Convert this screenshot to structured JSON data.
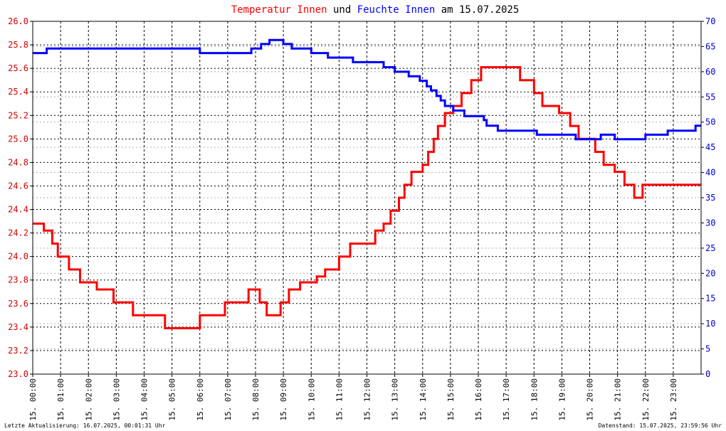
{
  "title": {
    "part1": "Temperatur Innen",
    "part2": " und ",
    "part3": "Feuchte Innen",
    "part4": " am 15.07.2025"
  },
  "footer": {
    "left": "Letzte Aktualisierung: 16.07.2025, 00:01:31 Uhr",
    "right": "Datenstand: 15.07.2025, 23:59:56 Uhr"
  },
  "colors": {
    "temperature": "#ff0000",
    "humidity": "#0000ff",
    "title_temp": "#ff0000",
    "title_hum": "#0000ff",
    "left_ticks": "#d00000",
    "right_ticks": "#0000d0",
    "grid": "#000000"
  },
  "chart_data": {
    "type": "line",
    "x_unit": "hour of day",
    "xlim": [
      0,
      24
    ],
    "x_ticks": [
      {
        "x": 0,
        "label": "15. 00:00"
      },
      {
        "x": 1,
        "label": "15. 01:00"
      },
      {
        "x": 2,
        "label": "15. 02:00"
      },
      {
        "x": 3,
        "label": "15. 03:00"
      },
      {
        "x": 4,
        "label": "15. 04:00"
      },
      {
        "x": 5,
        "label": "15. 05:00"
      },
      {
        "x": 6,
        "label": "15. 06:00"
      },
      {
        "x": 7,
        "label": "15. 07:00"
      },
      {
        "x": 8,
        "label": "15. 08:00"
      },
      {
        "x": 9,
        "label": "15. 09:00"
      },
      {
        "x": 10,
        "label": "15. 10:00"
      },
      {
        "x": 11,
        "label": "15. 11:00"
      },
      {
        "x": 12,
        "label": "15. 12:00"
      },
      {
        "x": 13,
        "label": "15. 13:00"
      },
      {
        "x": 14,
        "label": "15. 14:00"
      },
      {
        "x": 15,
        "label": "15. 15:00"
      },
      {
        "x": 16,
        "label": "15. 16:00"
      },
      {
        "x": 17,
        "label": "15. 17:00"
      },
      {
        "x": 18,
        "label": "15. 18:00"
      },
      {
        "x": 19,
        "label": "15. 19:00"
      },
      {
        "x": 20,
        "label": "15. 20:00"
      },
      {
        "x": 21,
        "label": "15. 21:00"
      },
      {
        "x": 22,
        "label": "15. 22:00"
      },
      {
        "x": 23,
        "label": "15. 23:00"
      }
    ],
    "y_left": {
      "ylim": [
        23.0,
        26.0
      ],
      "ticks": [
        {
          "v": 23.0,
          "label": "23.0"
        },
        {
          "v": 23.2,
          "label": "23.2"
        },
        {
          "v": 23.4,
          "label": "23.4"
        },
        {
          "v": 23.6,
          "label": "23.6"
        },
        {
          "v": 23.8,
          "label": "23.8"
        },
        {
          "v": 24.0,
          "label": "24.0"
        },
        {
          "v": 24.2,
          "label": "24.2"
        },
        {
          "v": 24.4,
          "label": "24.4"
        },
        {
          "v": 24.6,
          "label": "24.6"
        },
        {
          "v": 24.8,
          "label": "24.8"
        },
        {
          "v": 25.0,
          "label": "25.0"
        },
        {
          "v": 25.2,
          "label": "25.2"
        },
        {
          "v": 25.4,
          "label": "25.4"
        },
        {
          "v": 25.6,
          "label": "25.6"
        },
        {
          "v": 25.8,
          "label": "25.8"
        },
        {
          "v": 26.0,
          "label": "26.0"
        }
      ]
    },
    "y_right": {
      "ylim": [
        0,
        70
      ],
      "ticks": [
        {
          "v": 0,
          "label": "0"
        },
        {
          "v": 5,
          "label": "5"
        },
        {
          "v": 10,
          "label": "10"
        },
        {
          "v": 15,
          "label": "15"
        },
        {
          "v": 20,
          "label": "20"
        },
        {
          "v": 25,
          "label": "25"
        },
        {
          "v": 30,
          "label": "30"
        },
        {
          "v": 35,
          "label": "35"
        },
        {
          "v": 40,
          "label": "40"
        },
        {
          "v": 45,
          "label": "45"
        },
        {
          "v": 50,
          "label": "50"
        },
        {
          "v": 55,
          "label": "55"
        },
        {
          "v": 60,
          "label": "60"
        },
        {
          "v": 65,
          "label": "65"
        },
        {
          "v": 70,
          "label": "70"
        }
      ]
    },
    "grid": true,
    "series": [
      {
        "name": "Temperatur Innen",
        "axis": "left",
        "color": "#ff0000",
        "step": true,
        "points": [
          [
            0.0,
            24.28
          ],
          [
            0.4,
            24.22
          ],
          [
            0.7,
            24.11
          ],
          [
            0.9,
            24.0
          ],
          [
            1.3,
            23.89
          ],
          [
            1.7,
            23.78
          ],
          [
            2.3,
            23.72
          ],
          [
            2.9,
            23.61
          ],
          [
            3.3,
            23.61
          ],
          [
            3.6,
            23.5
          ],
          [
            4.2,
            23.5
          ],
          [
            4.75,
            23.39
          ],
          [
            5.5,
            23.39
          ],
          [
            6.0,
            23.5
          ],
          [
            6.5,
            23.5
          ],
          [
            6.9,
            23.61
          ],
          [
            7.5,
            23.61
          ],
          [
            7.75,
            23.72
          ],
          [
            8.15,
            23.61
          ],
          [
            8.4,
            23.5
          ],
          [
            8.9,
            23.61
          ],
          [
            9.2,
            23.72
          ],
          [
            9.6,
            23.78
          ],
          [
            10.2,
            23.83
          ],
          [
            10.5,
            23.89
          ],
          [
            11.0,
            24.0
          ],
          [
            11.4,
            24.11
          ],
          [
            12.3,
            24.22
          ],
          [
            12.6,
            24.28
          ],
          [
            12.85,
            24.39
          ],
          [
            13.15,
            24.5
          ],
          [
            13.35,
            24.61
          ],
          [
            13.6,
            24.72
          ],
          [
            14.0,
            24.78
          ],
          [
            14.2,
            24.89
          ],
          [
            14.4,
            25.0
          ],
          [
            14.55,
            25.11
          ],
          [
            14.8,
            25.22
          ],
          [
            15.1,
            25.28
          ],
          [
            15.4,
            25.39
          ],
          [
            15.75,
            25.5
          ],
          [
            16.1,
            25.61
          ],
          [
            16.5,
            25.61
          ],
          [
            17.0,
            25.61
          ],
          [
            17.5,
            25.5
          ],
          [
            18.0,
            25.39
          ],
          [
            18.3,
            25.28
          ],
          [
            18.9,
            25.22
          ],
          [
            19.3,
            25.11
          ],
          [
            19.6,
            25.0
          ],
          [
            20.2,
            24.89
          ],
          [
            20.5,
            24.78
          ],
          [
            20.9,
            24.72
          ],
          [
            21.25,
            24.61
          ],
          [
            21.6,
            24.5
          ],
          [
            21.9,
            24.61
          ],
          [
            24.0,
            24.61
          ]
        ]
      },
      {
        "name": "Feuchte Innen",
        "axis": "right",
        "color": "#0000ff",
        "step": true,
        "points": [
          [
            0.0,
            63.7
          ],
          [
            0.5,
            64.6
          ],
          [
            5.9,
            64.6
          ],
          [
            6.0,
            63.7
          ],
          [
            7.7,
            63.7
          ],
          [
            7.85,
            64.6
          ],
          [
            8.2,
            65.5
          ],
          [
            8.5,
            66.3
          ],
          [
            9.0,
            65.5
          ],
          [
            9.3,
            64.6
          ],
          [
            10.0,
            63.7
          ],
          [
            10.6,
            62.8
          ],
          [
            11.5,
            61.9
          ],
          [
            12.6,
            60.9
          ],
          [
            13.0,
            60.0
          ],
          [
            13.5,
            59.1
          ],
          [
            13.9,
            58.2
          ],
          [
            14.15,
            57.1
          ],
          [
            14.3,
            56.3
          ],
          [
            14.5,
            55.2
          ],
          [
            14.65,
            54.3
          ],
          [
            14.8,
            53.2
          ],
          [
            15.1,
            52.3
          ],
          [
            15.5,
            51.2
          ],
          [
            16.2,
            50.4
          ],
          [
            16.3,
            49.3
          ],
          [
            16.7,
            48.3
          ],
          [
            17.5,
            48.3
          ],
          [
            18.1,
            47.5
          ],
          [
            18.5,
            47.5
          ],
          [
            19.5,
            46.6
          ],
          [
            20.4,
            47.5
          ],
          [
            20.9,
            46.6
          ],
          [
            21.7,
            46.6
          ],
          [
            22.0,
            47.5
          ],
          [
            22.8,
            48.3
          ],
          [
            23.8,
            49.3
          ],
          [
            24.0,
            49.3
          ]
        ]
      }
    ]
  }
}
